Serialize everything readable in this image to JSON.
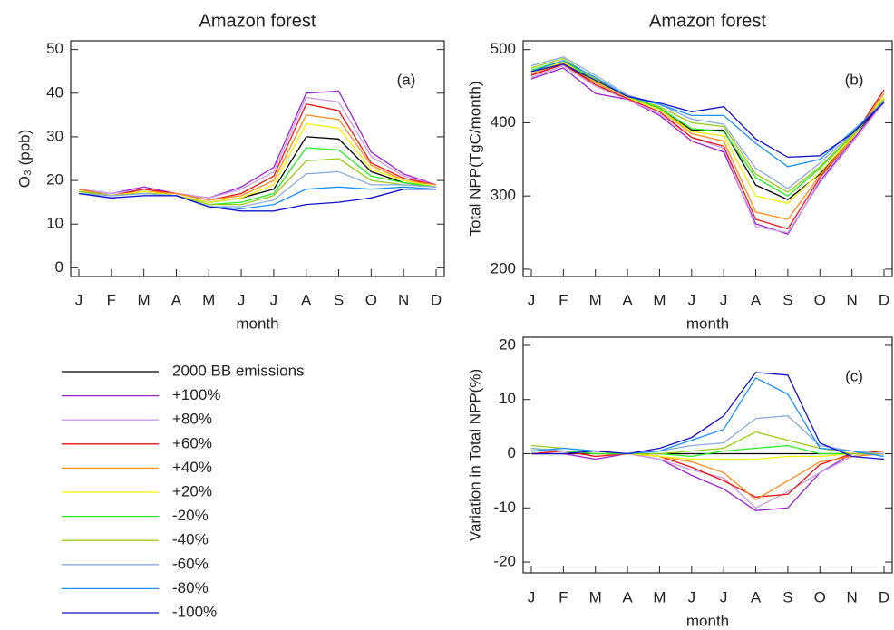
{
  "chart_data": [
    {
      "type": "line",
      "title": "Amazon forest",
      "xlabel": "month",
      "ylabel": "O₃ (ppb)",
      "panel_label": "(a)",
      "categories": [
        "J",
        "F",
        "M",
        "A",
        "M",
        "J",
        "J",
        "A",
        "S",
        "O",
        "N",
        "D"
      ],
      "ylim": [
        -2,
        52
      ],
      "yticks": [
        0,
        10,
        20,
        30,
        40,
        50
      ],
      "series": [
        {
          "name": "2000 BB emissions",
          "color": "#000000",
          "values": [
            17.5,
            16.5,
            17.5,
            16.5,
            15,
            16,
            18,
            30,
            29.5,
            22,
            19.5,
            18.5
          ]
        },
        {
          "name": "+100%",
          "color": "#9b1fd0",
          "values": [
            18,
            17,
            18.5,
            17,
            16,
            18.5,
            23,
            40,
            40.5,
            26.5,
            21.5,
            19
          ]
        },
        {
          "name": "+80%",
          "color": "#c89be8",
          "values": [
            18,
            17,
            18,
            17,
            16,
            18,
            22,
            39,
            38,
            25.5,
            21,
            19
          ]
        },
        {
          "name": "+60%",
          "color": "#ee1111",
          "values": [
            18,
            16.5,
            18,
            17,
            15.5,
            17,
            21,
            37.5,
            36,
            24,
            20.5,
            19
          ]
        },
        {
          "name": "+40%",
          "color": "#ff8c1a",
          "values": [
            18,
            16.5,
            17.5,
            17,
            15.5,
            16.5,
            20,
            35,
            34,
            23.5,
            20,
            19
          ]
        },
        {
          "name": "+20%",
          "color": "#f2f200",
          "values": [
            17.5,
            16.5,
            17.5,
            16.5,
            15,
            16,
            19,
            33,
            32,
            22.5,
            20,
            18.5
          ]
        },
        {
          "name": "-20%",
          "color": "#22ee22",
          "values": [
            17.5,
            16.5,
            17,
            16.5,
            14.5,
            15,
            17,
            27.5,
            27,
            21,
            19.5,
            18.5
          ]
        },
        {
          "name": "-40%",
          "color": "#99cc11",
          "values": [
            17.5,
            16.5,
            17,
            16.5,
            14.5,
            14.5,
            16.5,
            24.5,
            25,
            20,
            19,
            18.5
          ]
        },
        {
          "name": "-60%",
          "color": "#88aadd",
          "values": [
            17,
            16.5,
            17,
            16.5,
            14,
            14,
            15.5,
            21.5,
            22,
            19,
            19,
            18.5
          ]
        },
        {
          "name": "-80%",
          "color": "#1a90ff",
          "values": [
            17,
            16,
            16.5,
            16.5,
            14,
            13.5,
            14.5,
            18,
            18.5,
            18,
            18.5,
            18
          ]
        },
        {
          "name": "-100%",
          "color": "#1111cc",
          "values": [
            17,
            16,
            16.5,
            16.5,
            14,
            13,
            13,
            14.5,
            15,
            16,
            18,
            18
          ]
        }
      ]
    },
    {
      "type": "line",
      "title": "Amazon forest",
      "xlabel": "month",
      "ylabel": "Total NPP(TgC/month)",
      "panel_label": "(b)",
      "categories": [
        "J",
        "F",
        "M",
        "A",
        "M",
        "J",
        "J",
        "A",
        "S",
        "O",
        "N",
        "D"
      ],
      "ylim": [
        190,
        512
      ],
      "yticks": [
        200,
        300,
        400,
        500
      ],
      "series": [
        {
          "values": [
            465,
            480,
            455,
            435,
            420,
            390,
            390,
            315,
            295,
            330,
            380,
            430
          ]
        },
        {
          "values": [
            460,
            475,
            440,
            432,
            410,
            375,
            360,
            262,
            248,
            320,
            375,
            430
          ]
        },
        {
          "values": [
            462,
            478,
            450,
            432,
            412,
            380,
            365,
            258,
            250,
            318,
            372,
            428
          ]
        },
        {
          "values": [
            465,
            480,
            452,
            433,
            415,
            380,
            368,
            268,
            255,
            325,
            378,
            445
          ]
        },
        {
          "values": [
            467,
            482,
            455,
            435,
            418,
            385,
            375,
            278,
            268,
            328,
            378,
            440
          ]
        },
        {
          "values": [
            470,
            483,
            457,
            435,
            418,
            388,
            382,
            300,
            290,
            332,
            380,
            435
          ]
        },
        {
          "values": [
            472,
            485,
            458,
            436,
            420,
            392,
            388,
            325,
            300,
            338,
            382,
            432
          ]
        },
        {
          "values": [
            475,
            488,
            460,
            436,
            422,
            400,
            395,
            330,
            305,
            340,
            383,
            432
          ]
        },
        {
          "values": [
            478,
            490,
            465,
            438,
            425,
            405,
            398,
            338,
            310,
            345,
            385,
            430
          ]
        },
        {
          "values": [
            470,
            485,
            462,
            436,
            425,
            410,
            410,
            372,
            340,
            350,
            388,
            428
          ]
        },
        {
          "values": [
            470,
            480,
            458,
            436,
            427,
            415,
            422,
            378,
            353,
            355,
            385,
            428
          ]
        }
      ]
    },
    {
      "type": "line",
      "xlabel": "month",
      "ylabel": "Variation in Total NPP(%)",
      "panel_label": "(c)",
      "categories": [
        "J",
        "F",
        "M",
        "A",
        "M",
        "J",
        "J",
        "A",
        "S",
        "O",
        "N",
        "D"
      ],
      "ylim": [
        -22,
        21.5
      ],
      "yticks": [
        -20,
        -10,
        0,
        10,
        20
      ],
      "series": [
        {
          "values": [
            0,
            0,
            0,
            0,
            0,
            0,
            0,
            0,
            0,
            0,
            0,
            0
          ]
        },
        {
          "values": [
            0,
            0,
            -1,
            0,
            -1,
            -4,
            -6.5,
            -10.5,
            -10,
            -3.5,
            0,
            0
          ]
        },
        {
          "values": [
            0.5,
            0.5,
            -0.5,
            0,
            -1,
            -3,
            -4.5,
            -10,
            -7,
            -3.5,
            -0.5,
            0
          ]
        },
        {
          "values": [
            0,
            0.5,
            -0.5,
            0,
            -0.5,
            -2.5,
            -5,
            -8,
            -7.5,
            -2,
            0,
            0.5
          ]
        },
        {
          "values": [
            0.5,
            0.5,
            0,
            0,
            -0.5,
            -1.5,
            -3.5,
            -8.5,
            -5,
            -1.5,
            -0.5,
            0
          ]
        },
        {
          "values": [
            1,
            0.5,
            0,
            0,
            -0.5,
            -1,
            -1,
            -1,
            -0.5,
            -0.5,
            0,
            0
          ]
        },
        {
          "values": [
            1,
            0.5,
            0,
            0,
            0,
            -0.5,
            0.5,
            1,
            1.5,
            0,
            0,
            0
          ]
        },
        {
          "values": [
            1.5,
            1,
            0.5,
            0,
            0,
            0.5,
            1,
            4,
            2.5,
            1,
            0,
            0
          ]
        },
        {
          "values": [
            1,
            0.5,
            0.5,
            0,
            0.5,
            1.5,
            2,
            6.5,
            7,
            1.5,
            0.5,
            0
          ]
        },
        {
          "values": [
            0.5,
            1,
            0.5,
            0,
            0.5,
            2.5,
            4.5,
            14,
            11,
            1,
            0.5,
            -0.5
          ]
        },
        {
          "values": [
            0,
            0,
            0.5,
            0,
            1,
            3,
            7,
            15,
            14.5,
            2,
            -0.5,
            -1
          ]
        }
      ]
    }
  ]
}
